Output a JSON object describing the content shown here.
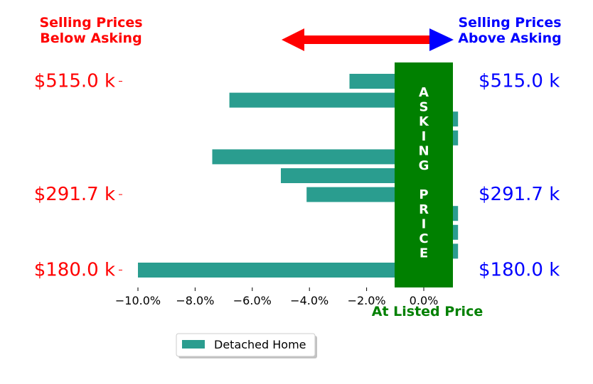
{
  "header": {
    "left_label_line1": "Selling Prices",
    "left_label_line2": "Below Asking",
    "right_label_line1": "Selling Prices",
    "right_label_line2": "Above Asking"
  },
  "colors": {
    "below": "#ff0000",
    "above": "#0000ff",
    "asking": "#008000",
    "bar": "#2a9d8f"
  },
  "asking_band": {
    "letters": [
      "A",
      "S",
      "K",
      "I",
      "N",
      "G",
      "",
      "P",
      "R",
      "I",
      "C",
      "E"
    ],
    "caption": "At Listed Price"
  },
  "chart_data": {
    "type": "bar",
    "orientation": "horizontal",
    "series": [
      {
        "name": "Detached Home",
        "values": [
          -2.6,
          -6.8,
          1.2,
          1.2,
          -7.4,
          -5.0,
          -4.1,
          1.2,
          1.2,
          1.2,
          -10.0
        ]
      }
    ],
    "x_ticks": [
      -10,
      -8,
      -6,
      -4,
      -2,
      0
    ],
    "x_tick_labels": [
      "−10.0%",
      "−8.0%",
      "−6.0%",
      "−4.0%",
      "−2.0%",
      "0.0%"
    ],
    "xlim": [
      -10.7,
      1.5
    ],
    "y_tick_labels": [
      "$515.0 k",
      "$291.7 k",
      "$180.0 k"
    ],
    "legend_position": "bottom-center"
  }
}
